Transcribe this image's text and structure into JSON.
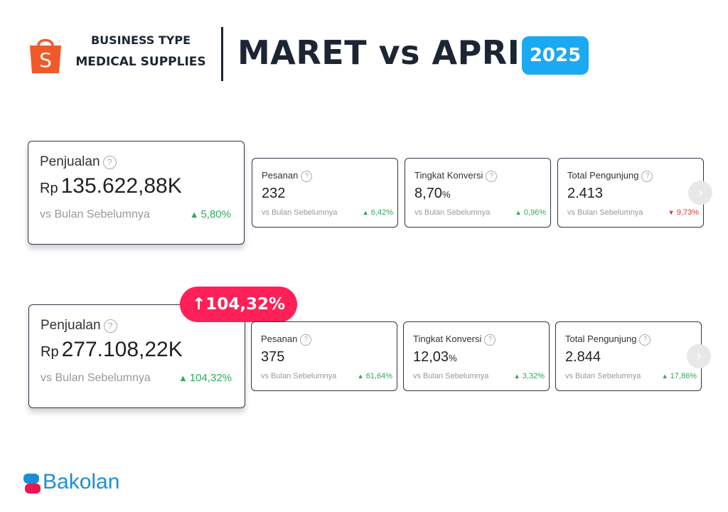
{
  "header": {
    "business_type_label": "BUSINESS TYPE",
    "business_type_value": "MEDICAL SUPPLIES",
    "title": "MARET vs APRIL",
    "year": "2025",
    "logo_icon": "shopee-bag-icon",
    "logo_letter": "S"
  },
  "maret": {
    "sales": {
      "label": "Penjualan",
      "currency": "Rp",
      "value": "135.622,88K",
      "comparison": "vs Bulan Sebelumnya",
      "change": "5,80%",
      "direction": "up"
    },
    "orders": {
      "label": "Pesanan",
      "value": "232",
      "comparison": "vs Bulan Sebelumnya",
      "change": "6,42%",
      "direction": "up"
    },
    "conversion": {
      "label": "Tingkat Konversi",
      "value": "8,70",
      "unit": "%",
      "comparison": "vs Bulan Sebelumnya",
      "change": "0,96%",
      "direction": "up"
    },
    "visitors": {
      "label": "Total Pengunjung",
      "value": "2.413",
      "comparison": "vs Bulan Sebelumnya",
      "change": "9,73%",
      "direction": "down"
    }
  },
  "april": {
    "growth_badge": "104,32%",
    "sales": {
      "label": "Penjualan",
      "currency": "Rp",
      "value": "277.108,22K",
      "comparison": "vs Bulan Sebelumnya",
      "change": "104,32%",
      "direction": "up"
    },
    "orders": {
      "label": "Pesanan",
      "value": "375",
      "comparison": "vs Bulan Sebelumnya",
      "change": "61,64%",
      "direction": "up"
    },
    "conversion": {
      "label": "Tingkat Konversi",
      "value": "12,03",
      "unit": "%",
      "comparison": "vs Bulan Sebelumnya",
      "change": "3,32%",
      "direction": "up"
    },
    "visitors": {
      "label": "Total Pengunjung",
      "value": "2.844",
      "comparison": "vs Bulan Sebelumnya",
      "change": "17,86%",
      "direction": "up"
    }
  },
  "glyphs": {
    "up": "▲",
    "down": "▼",
    "arrow_up": "↑",
    "help": "?",
    "next": "›"
  },
  "footer": {
    "brand": "Bakolan"
  },
  "colors": {
    "accent_blue": "#1aa9f2",
    "badge_pink": "#ff2057",
    "shopee_orange": "#f05a28",
    "positive": "#2ea85c",
    "negative": "#d93a3a",
    "dark": "#1d2433"
  }
}
